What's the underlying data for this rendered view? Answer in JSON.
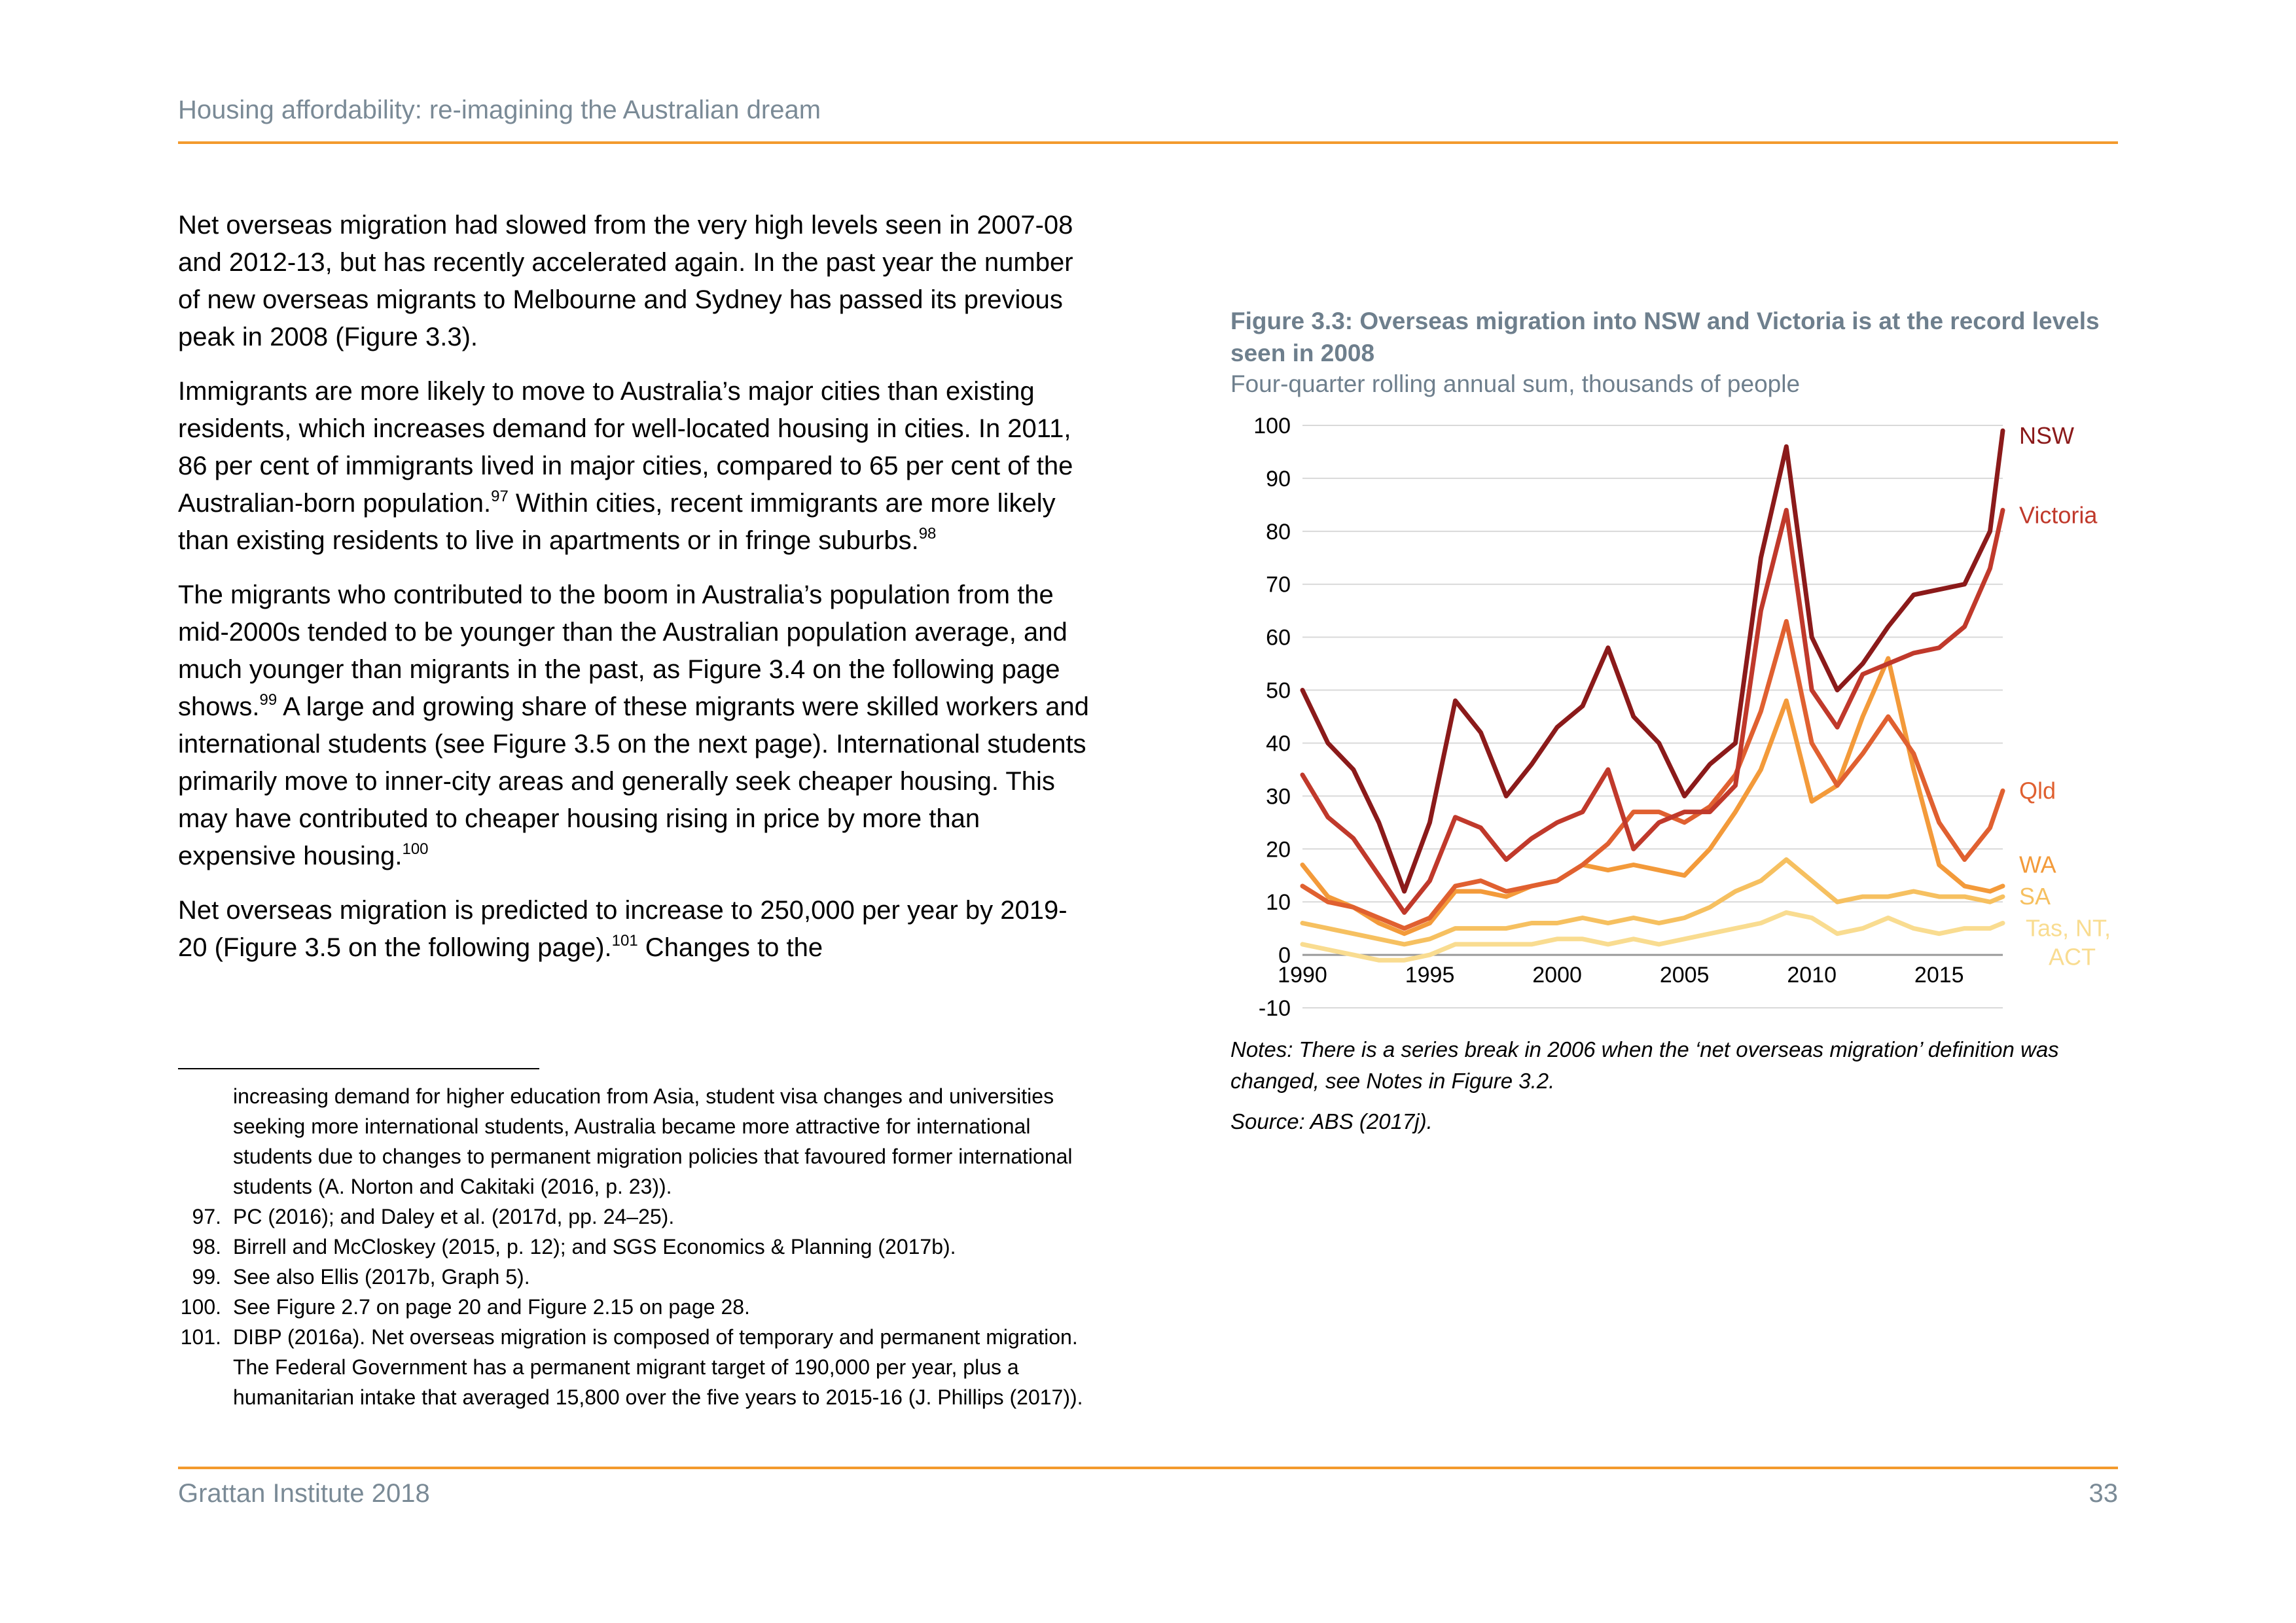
{
  "header": {
    "title": "Housing affordability: re-imagining the Australian dream"
  },
  "body": {
    "p1": "Net overseas migration had slowed from the very high levels seen in 2007-08 and 2012-13, but has recently accelerated again. In the past year the number of new overseas migrants to Melbourne and Sydney has passed its previous peak in 2008 (Figure 3.3).",
    "p2_text": "Immigrants are more likely to move to Australia’s major cities than existing residents, which increases demand for well-located housing in cities. In 2011, 86 per cent of immigrants lived in major cities, compared to 65 per cent of the Australian-born population.",
    "p2_ref1": "97",
    "p2_text2": " Within cities, recent immigrants are more likely than existing residents to live in apartments or in fringe suburbs.",
    "p2_ref2": "98",
    "p3_text": "The migrants who contributed to the boom in Australia’s population from the mid-2000s tended to be younger than the Australian population average, and much younger than migrants in the past, as Figure 3.4 on the following page shows.",
    "p3_ref1": "99",
    "p3_text2": " A large and growing share of these migrants were skilled workers and international students (see Figure 3.5 on the next page). International students primarily move to inner-city areas and generally seek cheaper housing. This may have contributed to cheaper housing rising in price by more than expensive housing.",
    "p3_ref2": "100",
    "p4_text": "Net overseas migration is predicted to increase to 250,000 per year by 2019-20 (Figure 3.5 on the following page).",
    "p4_ref": "101",
    "p4_text2": " Changes to the"
  },
  "footnotes": [
    {
      "num": "",
      "text": "increasing demand for higher education from Asia, student visa changes and universities seeking more international students, Australia became more attractive for international students due to changes to permanent migration policies that favoured former international students (A. Norton and Cakitaki (2016, p. 23))."
    },
    {
      "num": "97.",
      "text": "PC (2016); and Daley et al. (2017d, pp. 24–25)."
    },
    {
      "num": "98.",
      "text": "Birrell and McCloskey (2015, p. 12); and SGS Economics & Planning (2017b)."
    },
    {
      "num": "99.",
      "text": "See also Ellis (2017b, Graph 5)."
    },
    {
      "num": "100.",
      "text": "See Figure 2.7 on page 20 and Figure 2.15 on page 28."
    },
    {
      "num": "101.",
      "text": "DIBP (2016a). Net overseas migration is composed of temporary and permanent migration. The Federal Government has a permanent migrant target of 190,000 per year, plus a humanitarian intake that averaged 15,800 over the five years to 2015-16 (J. Phillips (2017))."
    }
  ],
  "figure": {
    "title": "Figure 3.3: Overseas migration into NSW and Victoria is at the record levels seen in 2008",
    "subtitle": "Four-quarter rolling annual sum, thousands of people",
    "notes": "Notes: There is a series break in 2006 when the ‘net overseas migration’ definition was changed, see Notes in Figure 3.2.",
    "source": "Source: ABS (2017j)."
  },
  "chart_data": {
    "type": "line",
    "title": "Figure 3.3: Overseas migration into NSW and Victoria is at the record levels seen in 2008",
    "subtitle": "Four-quarter rolling annual sum, thousands of people",
    "xlabel": "",
    "ylabel": "",
    "xlim": [
      1990,
      2017.5
    ],
    "ylim": [
      -10,
      100
    ],
    "xticks": [
      1990,
      1995,
      2000,
      2005,
      2010,
      2015
    ],
    "yticks": [
      -10,
      0,
      10,
      20,
      30,
      40,
      50,
      60,
      70,
      80,
      90,
      100
    ],
    "grid": "horizontal",
    "legend": "direct labels at right end",
    "x": [
      1990,
      1991,
      1992,
      1993,
      1994,
      1995,
      1996,
      1997,
      1998,
      1999,
      2000,
      2001,
      2002,
      2003,
      2004,
      2005,
      2006,
      2007,
      2008,
      2009,
      2010,
      2011,
      2012,
      2013,
      2014,
      2015,
      2016,
      2017,
      2017.5
    ],
    "series": [
      {
        "name": "NSW",
        "color": "#8b1a1a",
        "values": [
          50,
          40,
          35,
          25,
          12,
          25,
          48,
          42,
          30,
          36,
          43,
          47,
          58,
          45,
          40,
          30,
          36,
          40,
          75,
          96,
          60,
          50,
          55,
          62,
          68,
          69,
          70,
          80,
          99
        ]
      },
      {
        "name": "Victoria",
        "color": "#c0392b",
        "values": [
          34,
          26,
          22,
          15,
          8,
          14,
          26,
          24,
          18,
          22,
          25,
          27,
          35,
          20,
          25,
          27,
          27,
          32,
          65,
          84,
          50,
          43,
          53,
          55,
          57,
          58,
          62,
          73,
          84
        ]
      },
      {
        "name": "Qld",
        "color": "#e06030",
        "values": [
          13,
          10,
          9,
          7,
          5,
          7,
          13,
          14,
          12,
          13,
          14,
          17,
          21,
          27,
          27,
          25,
          28,
          34,
          46,
          63,
          40,
          32,
          38,
          45,
          38,
          25,
          18,
          24,
          31
        ]
      },
      {
        "name": "WA",
        "color": "#f39a3a",
        "values": [
          17,
          11,
          9,
          6,
          4,
          6,
          12,
          12,
          11,
          13,
          14,
          17,
          16,
          17,
          16,
          15,
          20,
          27,
          35,
          48,
          29,
          32,
          45,
          56,
          35,
          17,
          13,
          12,
          13
        ]
      },
      {
        "name": "SA",
        "color": "#f6c060",
        "values": [
          6,
          5,
          4,
          3,
          2,
          3,
          5,
          5,
          5,
          6,
          6,
          7,
          6,
          7,
          6,
          7,
          9,
          12,
          14,
          18,
          14,
          10,
          11,
          11,
          12,
          11,
          11,
          10,
          11
        ]
      },
      {
        "name": "Tas, NT, ACT",
        "color": "#f9dc90",
        "values": [
          2,
          1,
          0,
          -1,
          -1,
          0,
          2,
          2,
          2,
          2,
          3,
          3,
          2,
          3,
          2,
          3,
          4,
          5,
          6,
          8,
          7,
          4,
          5,
          7,
          5,
          4,
          5,
          5,
          6
        ]
      }
    ]
  }
}
